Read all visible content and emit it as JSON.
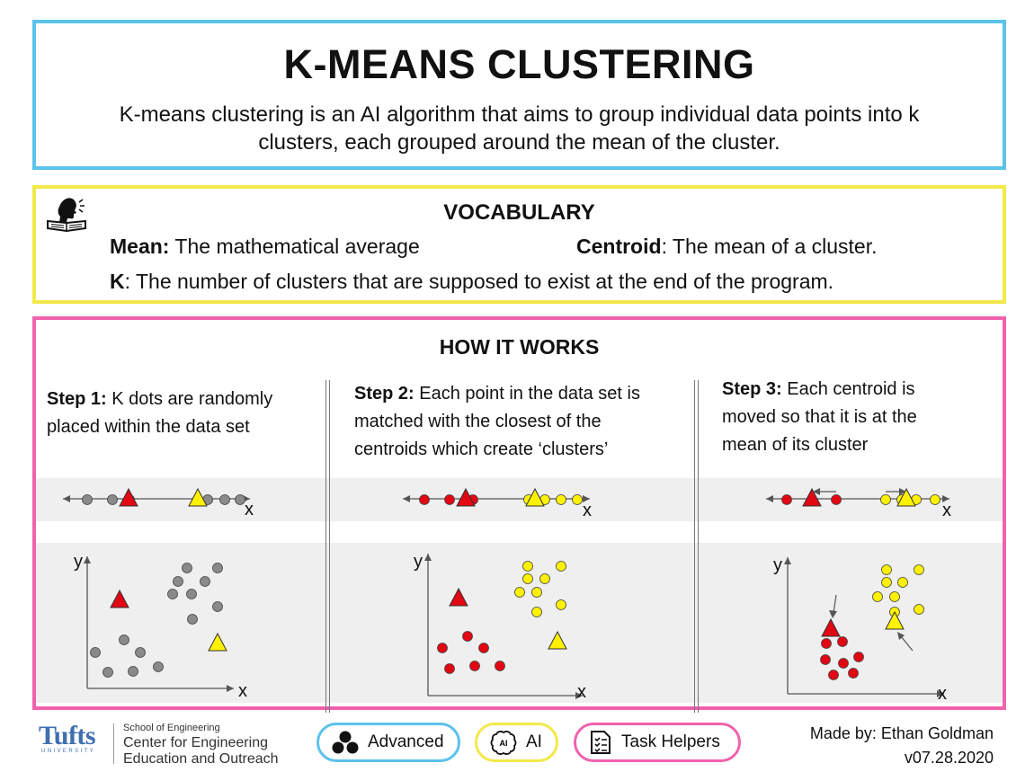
{
  "header": {
    "title": "K-MEANS CLUSTERING",
    "subtitle": "K-means clustering is an AI algorithm that aims to group individual data points into k clusters, each grouped around the mean of the cluster."
  },
  "vocabulary": {
    "heading": "VOCABULARY",
    "icon": "reader-speaking-icon",
    "items": [
      {
        "term": "Mean:",
        "definition": " The mathematical average"
      },
      {
        "term": "Centroid",
        "definition": ": The mean of a cluster."
      },
      {
        "term": "K",
        "definition": ": The number of clusters that are supposed to exist at the end of the program."
      }
    ]
  },
  "how_it_works": {
    "heading": "HOW IT WORKS",
    "steps": [
      {
        "label": "Step 1:",
        "text": " K dots are randomly placed within the data set"
      },
      {
        "label": "Step 2:",
        "text": " Each point in the data set is matched with the closest of the centroids which create ‘clusters’"
      },
      {
        "label": "Step 3:",
        "text": " Each centroid is moved so that it is at the mean of its cluster"
      }
    ],
    "axis_labels": {
      "x": "x",
      "y": "y"
    },
    "colors": {
      "red": "#e30613",
      "yellow": "#fff200",
      "gray": "#8a8a8a"
    }
  },
  "footer": {
    "org_word": "Tufts",
    "org_sub": "UNIVERSITY",
    "school": "School of Engineering",
    "center_line1": "Center for Engineering",
    "center_line2": "Education and Outreach",
    "tags": [
      {
        "label": "Advanced",
        "icon": "three-dots-icon",
        "color": "#5bc2ec"
      },
      {
        "label": "AI",
        "icon": "ai-brain-icon",
        "color": "#f2e94a"
      },
      {
        "label": "Task Helpers",
        "icon": "checklist-icon",
        "color": "#f062ad"
      }
    ],
    "credit_line1": "Made by: Ethan Goldman",
    "credit_line2": "v07.28.2020"
  }
}
